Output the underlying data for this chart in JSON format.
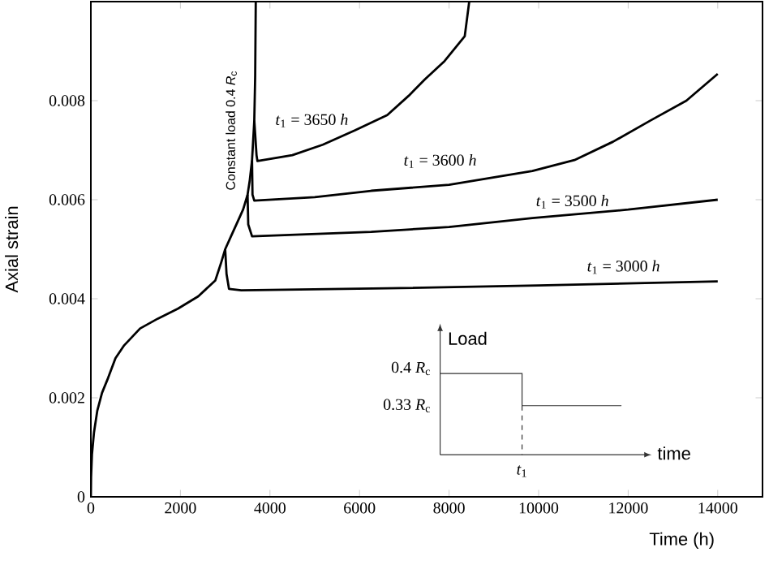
{
  "chart_data": {
    "type": "line",
    "xlabel": "Time (h)",
    "ylabel": "Axial strain",
    "xlim": [
      0,
      15000
    ],
    "ylim": [
      0,
      0.01
    ],
    "xticks": [
      0,
      2000,
      4000,
      6000,
      8000,
      10000,
      12000,
      14000
    ],
    "yticks": [
      0,
      0.002,
      0.004,
      0.006,
      0.008
    ],
    "grid": false,
    "marker": "none",
    "line_style": "solid",
    "series": [
      {
        "color": "#000000",
        "x": [
          0,
          5,
          25,
          70,
          144,
          250,
          385,
          550,
          745,
          1100,
          1500,
          1944,
          2400,
          2780,
          2900,
          3000,
          3150,
          3300,
          3400,
          3500,
          3550,
          3600,
          3650,
          3670,
          3683
        ],
        "values": [
          0,
          0.0004,
          0.00086,
          0.0013,
          0.00174,
          0.0021,
          0.0024,
          0.0028,
          0.00306,
          0.0034,
          0.0036,
          0.0038,
          0.00405,
          0.00437,
          0.0047,
          0.005,
          0.0053,
          0.0056,
          0.0058,
          0.0061,
          0.0064,
          0.0068,
          0.0076,
          0.0085,
          0.01
        ]
      },
      {
        "color": "#000000",
        "x": [
          3000,
          3030,
          3085,
          3360,
          6620,
          10000,
          14000
        ],
        "values": [
          0.005,
          0.0045,
          0.0042,
          0.00417,
          0.00421,
          0.00427,
          0.00435
        ]
      },
      {
        "color": "#000000",
        "x": [
          3500,
          3515,
          3600,
          6260,
          8000,
          9860,
          12000,
          14000
        ],
        "values": [
          0.0061,
          0.0055,
          0.00526,
          0.00535,
          0.00545,
          0.00563,
          0.0058,
          0.006
        ]
      },
      {
        "color": "#000000",
        "x": [
          3600,
          3610,
          3650,
          5000,
          6260,
          8000,
          9860,
          10800,
          11660,
          12500,
          13300,
          14000
        ],
        "values": [
          0.0068,
          0.0061,
          0.00598,
          0.00605,
          0.00618,
          0.0063,
          0.00658,
          0.0068,
          0.00717,
          0.0076,
          0.008,
          0.00854
        ]
      },
      {
        "color": "#000000",
        "x": [
          3650,
          3700,
          3720,
          4500,
          5180,
          5900,
          6620,
          7100,
          7460,
          7900,
          8350,
          8450
        ],
        "values": [
          0.0076,
          0.0069,
          0.00678,
          0.0069,
          0.00711,
          0.0074,
          0.00771,
          0.0081,
          0.00843,
          0.0088,
          0.0093,
          0.01
        ]
      }
    ],
    "annotations": [
      "Constant load 0.4 *R*$_{c}$",
      "*t*$_{1}$ = 3650 *h*",
      "*t*$_{1}$ = 3600 *h*",
      "*t*$_{1}$ = 3500 *h*",
      "*t*$_{1}$ = 3000 *h*",
      "Load",
      "0.4 *R*$_{c}$",
      "0.33 *R*$_{c}$",
      "time",
      "*t*$_{1}$"
    ]
  }
}
